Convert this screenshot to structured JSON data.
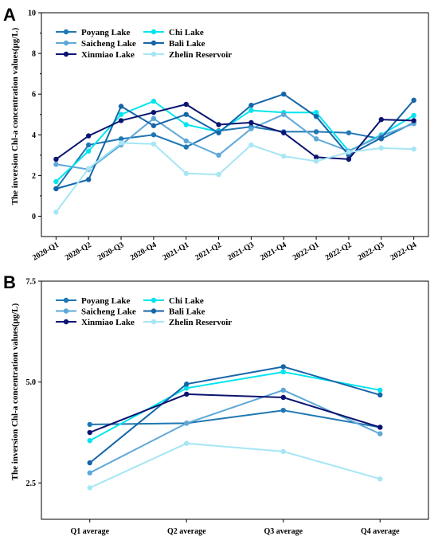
{
  "chart_data": [
    {
      "type": "line",
      "panel_label": "A",
      "categories": [
        "2020-Q1",
        "2020-Q2",
        "2020-Q3",
        "2020-Q4",
        "2021-Q1",
        "2021-Q2",
        "2021-Q3",
        "2021-Q4",
        "2022-Q1",
        "2022-Q2",
        "2022-Q3",
        "2022-Q4"
      ],
      "ylabel": "The inversion Chl-a concentration values(μg/L)",
      "xlabel": "",
      "ylim": [
        -1,
        10
      ],
      "yticks": [
        "0",
        "2",
        "4",
        "6",
        "8",
        "10"
      ],
      "grid": false,
      "legend_position": "top-left",
      "series": [
        {
          "name": "Poyang Lake",
          "color": "#1f77b4",
          "values": [
            1.35,
            3.5,
            3.8,
            4.0,
            3.4,
            4.2,
            4.4,
            4.15,
            4.15,
            4.1,
            3.8,
            4.6
          ]
        },
        {
          "name": "Chi Lake",
          "color": "#00e5ee",
          "values": [
            1.7,
            3.2,
            5.0,
            5.65,
            4.5,
            4.15,
            5.2,
            5.1,
            5.1,
            3.2,
            4.0,
            4.95
          ]
        },
        {
          "name": "Saicheng Lake",
          "color": "#5ea8d8",
          "values": [
            2.55,
            2.3,
            3.5,
            4.8,
            3.7,
            3.0,
            4.3,
            5.0,
            3.8,
            3.2,
            3.95,
            4.55
          ]
        },
        {
          "name": "Bali Lake",
          "color": "#1565a8",
          "values": [
            1.35,
            1.8,
            5.4,
            4.45,
            5.0,
            4.1,
            5.45,
            6.0,
            4.9,
            3.0,
            3.85,
            5.7
          ]
        },
        {
          "name": "Xinmiao Lake",
          "color": "#0b1570",
          "values": [
            2.8,
            3.95,
            4.7,
            5.1,
            5.5,
            4.5,
            4.6,
            4.1,
            2.9,
            2.8,
            4.75,
            4.7
          ]
        },
        {
          "name": "Zhelin Reservoir",
          "color": "#a6e6f5",
          "values": [
            0.2,
            2.35,
            3.6,
            3.55,
            2.1,
            2.05,
            3.5,
            2.95,
            2.7,
            3.15,
            3.35,
            3.3
          ]
        }
      ]
    },
    {
      "type": "line",
      "panel_label": "B",
      "categories": [
        "Q1 average",
        "Q2 average",
        "Q3 average",
        "Q4 average"
      ],
      "ylabel": "The inversion Chl-a concentration values(μg/L)",
      "xlabel": "",
      "ylim": [
        1.6,
        7.5
      ],
      "yticks": [
        "2.5",
        "5.0",
        "7.5"
      ],
      "grid": false,
      "legend_position": "top-left",
      "series": [
        {
          "name": "Poyang Lake",
          "color": "#1f77b4",
          "values": [
            3.95,
            3.98,
            4.3,
            3.88
          ]
        },
        {
          "name": "Chi Lake",
          "color": "#00e5ee",
          "values": [
            3.55,
            4.85,
            5.25,
            4.8
          ]
        },
        {
          "name": "Saicheng Lake",
          "color": "#5ea8d8",
          "values": [
            2.75,
            3.98,
            4.8,
            3.72
          ]
        },
        {
          "name": "Bali Lake",
          "color": "#1565a8",
          "values": [
            3.0,
            4.95,
            5.38,
            4.68
          ]
        },
        {
          "name": "Xinmiao Lake",
          "color": "#0b1570",
          "values": [
            3.75,
            4.7,
            4.62,
            3.88
          ]
        },
        {
          "name": "Zhelin Reservoir",
          "color": "#a6e6f5",
          "values": [
            2.38,
            3.48,
            3.28,
            2.6
          ]
        }
      ]
    }
  ]
}
